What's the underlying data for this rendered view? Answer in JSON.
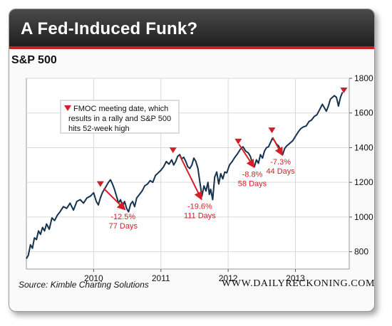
{
  "title": "A Fed-Induced Funk?",
  "subtitle": "S&P 500",
  "source": "Source: Kimble Charting Solutions",
  "website": "WWW.DAILYRECKONING.COM",
  "legend": {
    "lines": [
      "FMOC meeting date, which",
      "results in a rally and S&P 500",
      "hits 52-week high"
    ]
  },
  "colors": {
    "line": "#15324f",
    "accent": "#d31f26",
    "titlebar": "#2b2b2b"
  },
  "chart_data": {
    "type": "line",
    "title": "S&P 500",
    "xlabel": "",
    "ylabel": "",
    "xlim": [
      2009.0,
      2013.8
    ],
    "ylim": [
      700,
      1800
    ],
    "x_ticks": [
      2010,
      2011,
      2012,
      2013
    ],
    "y_ticks": [
      800,
      1000,
      1200,
      1400,
      1600,
      1800
    ],
    "grid": true,
    "y_axis_side": "right",
    "series": [
      {
        "values": [
          [
            2009.0,
            760
          ],
          [
            2009.03,
            780
          ],
          [
            2009.06,
            840
          ],
          [
            2009.09,
            820
          ],
          [
            2009.12,
            880
          ],
          [
            2009.15,
            870
          ],
          [
            2009.18,
            920
          ],
          [
            2009.21,
            900
          ],
          [
            2009.24,
            940
          ],
          [
            2009.27,
            920
          ],
          [
            2009.3,
            960
          ],
          [
            2009.34,
            930
          ],
          [
            2009.38,
            995
          ],
          [
            2009.42,
            980
          ],
          [
            2009.46,
            1010
          ],
          [
            2009.5,
            1030
          ],
          [
            2009.55,
            1060
          ],
          [
            2009.6,
            1050
          ],
          [
            2009.65,
            1080
          ],
          [
            2009.7,
            1040
          ],
          [
            2009.75,
            1090
          ],
          [
            2009.8,
            1100
          ],
          [
            2009.85,
            1080
          ],
          [
            2009.9,
            1110
          ],
          [
            2009.95,
            1120
          ],
          [
            2010.0,
            1140
          ],
          [
            2010.04,
            1090
          ],
          [
            2010.07,
            1070
          ],
          [
            2010.1,
            1110
          ],
          [
            2010.13,
            1140
          ],
          [
            2010.16,
            1160
          ],
          [
            2010.19,
            1180
          ],
          [
            2010.22,
            1200
          ],
          [
            2010.25,
            1215
          ],
          [
            2010.28,
            1190
          ],
          [
            2010.31,
            1160
          ],
          [
            2010.34,
            1120
          ],
          [
            2010.37,
            1080
          ],
          [
            2010.4,
            1100
          ],
          [
            2010.43,
            1060
          ],
          [
            2010.46,
            1090
          ],
          [
            2010.49,
            1050
          ],
          [
            2010.52,
            1030
          ],
          [
            2010.55,
            1075
          ],
          [
            2010.58,
            1090
          ],
          [
            2010.61,
            1060
          ],
          [
            2010.64,
            1110
          ],
          [
            2010.68,
            1130
          ],
          [
            2010.72,
            1150
          ],
          [
            2010.76,
            1180
          ],
          [
            2010.8,
            1190
          ],
          [
            2010.84,
            1210
          ],
          [
            2010.88,
            1200
          ],
          [
            2010.92,
            1240
          ],
          [
            2010.96,
            1255
          ],
          [
            2011.0,
            1270
          ],
          [
            2011.04,
            1290
          ],
          [
            2011.08,
            1320
          ],
          [
            2011.12,
            1305
          ],
          [
            2011.16,
            1330
          ],
          [
            2011.19,
            1300
          ],
          [
            2011.22,
            1320
          ],
          [
            2011.25,
            1350
          ],
          [
            2011.28,
            1360
          ],
          [
            2011.31,
            1335
          ],
          [
            2011.34,
            1345
          ],
          [
            2011.37,
            1320
          ],
          [
            2011.4,
            1290
          ],
          [
            2011.43,
            1280
          ],
          [
            2011.46,
            1300
          ],
          [
            2011.49,
            1340
          ],
          [
            2011.52,
            1320
          ],
          [
            2011.55,
            1280
          ],
          [
            2011.58,
            1200
          ],
          [
            2011.61,
            1120
          ],
          [
            2011.64,
            1180
          ],
          [
            2011.67,
            1150
          ],
          [
            2011.7,
            1200
          ],
          [
            2011.72,
            1130
          ],
          [
            2011.74,
            1160
          ],
          [
            2011.77,
            1100
          ],
          [
            2011.8,
            1230
          ],
          [
            2011.83,
            1260
          ],
          [
            2011.86,
            1190
          ],
          [
            2011.89,
            1250
          ],
          [
            2011.92,
            1220
          ],
          [
            2011.95,
            1260
          ],
          [
            2011.98,
            1255
          ],
          [
            2012.02,
            1300
          ],
          [
            2012.06,
            1320
          ],
          [
            2012.1,
            1345
          ],
          [
            2012.14,
            1365
          ],
          [
            2012.18,
            1390
          ],
          [
            2012.22,
            1405
          ],
          [
            2012.26,
            1380
          ],
          [
            2012.3,
            1370
          ],
          [
            2012.33,
            1350
          ],
          [
            2012.36,
            1310
          ],
          [
            2012.39,
            1290
          ],
          [
            2012.42,
            1330
          ],
          [
            2012.45,
            1310
          ],
          [
            2012.48,
            1360
          ],
          [
            2012.51,
            1340
          ],
          [
            2012.54,
            1380
          ],
          [
            2012.57,
            1400
          ],
          [
            2012.6,
            1405
          ],
          [
            2012.63,
            1430
          ],
          [
            2012.66,
            1455
          ],
          [
            2012.69,
            1440
          ],
          [
            2012.72,
            1420
          ],
          [
            2012.75,
            1410
          ],
          [
            2012.78,
            1380
          ],
          [
            2012.81,
            1360
          ],
          [
            2012.84,
            1395
          ],
          [
            2012.87,
            1410
          ],
          [
            2012.9,
            1420
          ],
          [
            2012.93,
            1430
          ],
          [
            2012.96,
            1440
          ],
          [
            2013.0,
            1465
          ],
          [
            2013.04,
            1490
          ],
          [
            2013.08,
            1510
          ],
          [
            2013.12,
            1520
          ],
          [
            2013.16,
            1525
          ],
          [
            2013.2,
            1550
          ],
          [
            2013.24,
            1560
          ],
          [
            2013.28,
            1580
          ],
          [
            2013.32,
            1590
          ],
          [
            2013.36,
            1620
          ],
          [
            2013.4,
            1650
          ],
          [
            2013.43,
            1630
          ],
          [
            2013.46,
            1610
          ],
          [
            2013.49,
            1640
          ],
          [
            2013.52,
            1680
          ],
          [
            2013.55,
            1690
          ],
          [
            2013.58,
            1700
          ],
          [
            2013.61,
            1690
          ],
          [
            2013.64,
            1640
          ],
          [
            2013.67,
            1690
          ],
          [
            2013.7,
            1720
          ]
        ]
      }
    ],
    "fomc_markers": [
      [
        2010.1,
        1190
      ],
      [
        2011.18,
        1385
      ],
      [
        2012.15,
        1435
      ],
      [
        2012.65,
        1500
      ],
      [
        2013.72,
        1730
      ]
    ],
    "declines": [
      {
        "from": [
          2010.15,
          1165
        ],
        "to": [
          2010.46,
          1045
        ],
        "pct": "-12.5%",
        "days": "77 Days"
      },
      {
        "from": [
          2011.28,
          1355
        ],
        "to": [
          2011.6,
          1105
        ],
        "pct": "-19.6%",
        "days": "111 Days"
      },
      {
        "from": [
          2012.16,
          1420
        ],
        "to": [
          2012.38,
          1290
        ],
        "pct": "-8.8%",
        "days": "58 Days"
      },
      {
        "from": [
          2012.66,
          1460
        ],
        "to": [
          2012.8,
          1360
        ],
        "pct": "-7.3%",
        "days": "44 Days"
      }
    ]
  }
}
